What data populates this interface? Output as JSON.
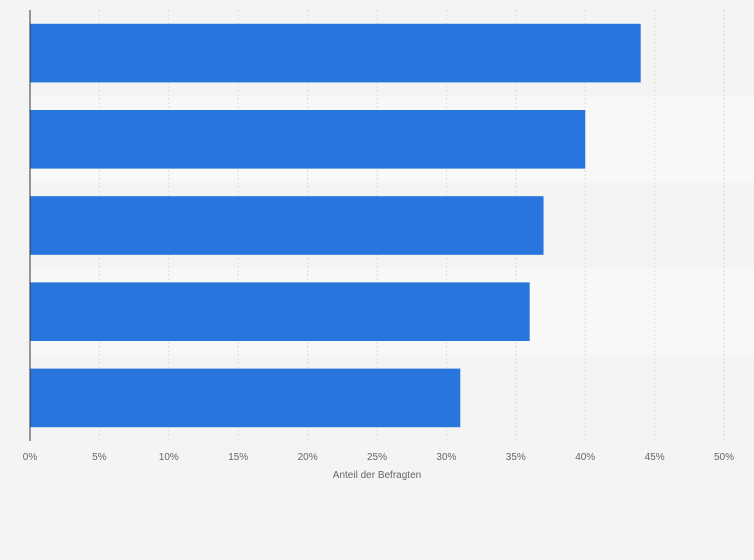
{
  "chart_data": {
    "type": "bar",
    "orientation": "horizontal",
    "categories": [
      "",
      "",
      "",
      "",
      ""
    ],
    "values": [
      44,
      40,
      37,
      36,
      31
    ],
    "title": "",
    "xlabel": "Anteil der Befragten",
    "ylabel": "",
    "xlim": [
      0,
      50
    ],
    "x_ticks": [
      0,
      5,
      10,
      15,
      20,
      25,
      30,
      35,
      40,
      45,
      50
    ],
    "tick_format": "%",
    "grid": "vertical dashed",
    "legend": "none",
    "colors": {
      "bar": "#2876dd",
      "background": "#f4f4f4",
      "band_light": "#f8f8f8",
      "grid": "#dddddd",
      "axis": "#333333",
      "text": "#666666"
    }
  }
}
